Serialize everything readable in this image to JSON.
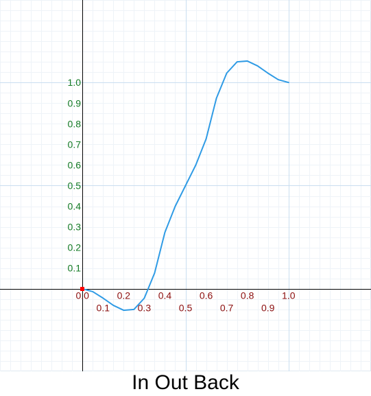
{
  "chart_data": {
    "type": "line",
    "title": "In Out Back",
    "xlabel": "",
    "ylabel": "",
    "xlim": [
      -0.4,
      1.4
    ],
    "ylim": [
      -0.4,
      1.4
    ],
    "grid": true,
    "x_ticks": [
      "0.0",
      "0.1",
      "0.2",
      "0.3",
      "0.4",
      "0.5",
      "0.6",
      "0.7",
      "0.8",
      "0.9",
      "1.0"
    ],
    "y_ticks": [
      "0.1",
      "0.2",
      "0.3",
      "0.4",
      "0.5",
      "0.6",
      "0.7",
      "0.8",
      "0.9",
      "1.0"
    ],
    "series": [
      {
        "x": [
          0.0,
          0.05,
          0.1,
          0.15,
          0.2,
          0.25,
          0.3,
          0.35,
          0.4,
          0.45,
          0.5,
          0.55,
          0.6,
          0.65,
          0.7,
          0.75,
          0.8,
          0.85,
          0.9,
          0.95,
          1.0
        ],
        "y": [
          0.0,
          -0.0138,
          -0.0453,
          -0.0803,
          -0.1041,
          -0.1,
          -0.0457,
          0.0761,
          0.2732,
          0.3998,
          0.5,
          0.6002,
          0.7268,
          0.9239,
          1.0457,
          1.1,
          1.1041,
          1.0803,
          1.0453,
          1.0138,
          1.0
        ]
      }
    ],
    "colors": {
      "line": "#2f9be5",
      "x_tick_labels": "#8b0d0d",
      "y_tick_labels": "#137a24",
      "axes": "#000000",
      "grid": "#dfe9f1",
      "origin_marker": "#ff0000"
    }
  }
}
